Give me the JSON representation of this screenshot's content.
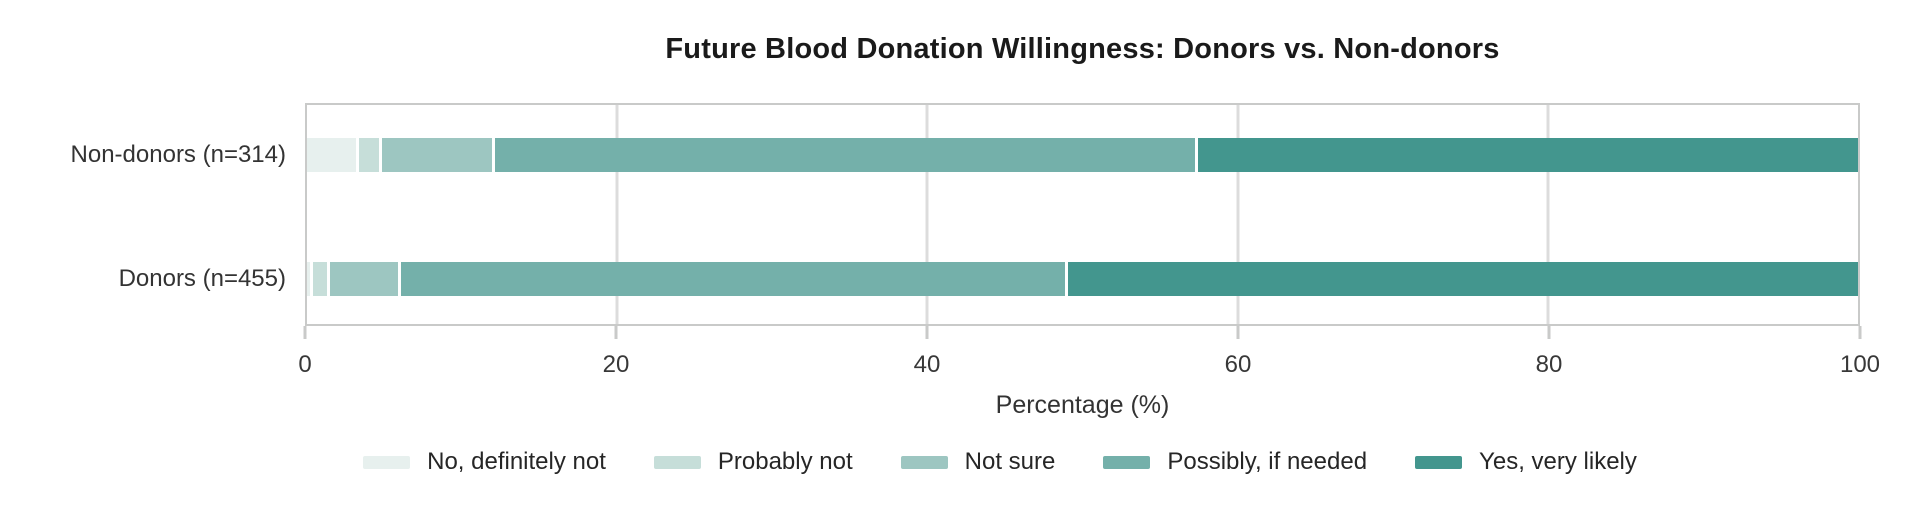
{
  "title": "Future Blood Donation Willingness: Donors vs. Non-donors",
  "chart_data": {
    "type": "bar",
    "orientation": "horizontal",
    "stacked": true,
    "title": "Future Blood Donation Willingness: Donors vs. Non-donors",
    "xlabel": "Percentage (%)",
    "ylabel": "",
    "xlim": [
      0,
      100
    ],
    "xticks": [
      0,
      20,
      40,
      60,
      80,
      100
    ],
    "grid": "vertical-only",
    "legend_position": "bottom",
    "categories": [
      "Non-donors (n=314)",
      "Donors (n=455)"
    ],
    "series": [
      {
        "name": "No, definitely not",
        "color": "#e7f0ee",
        "values": [
          3.2,
          0.2
        ]
      },
      {
        "name": "Probably not",
        "color": "#c6ded9",
        "values": [
          1.3,
          0.9
        ]
      },
      {
        "name": "Not sure",
        "color": "#9dc6c1",
        "values": [
          7.1,
          4.4
        ]
      },
      {
        "name": "Possibly, if needed",
        "color": "#74b0aa",
        "values": [
          45.5,
          43.2
        ]
      },
      {
        "name": "Yes, very likely",
        "color": "#43968e",
        "values": [
          42.9,
          51.3
        ]
      }
    ]
  },
  "style": {
    "gridline_color": "#dcdcdc",
    "panel_border_color": "#c9cac9",
    "title_color": "#1a1a1a",
    "axis_text_color": "#383838"
  }
}
